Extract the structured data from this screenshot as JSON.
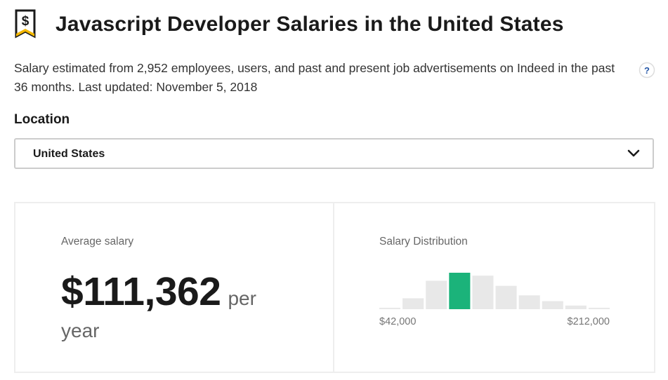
{
  "header": {
    "title": "Javascript Developer Salaries in the United States",
    "icon": "salary-tag-icon"
  },
  "description": "Salary estimated from 2,952 employees, users, and past and present job advertisements on Indeed in the past 36 months. Last updated: November 5, 2018",
  "help": {
    "icon": "help-icon",
    "glyph": "?"
  },
  "location": {
    "label": "Location",
    "selected": "United States"
  },
  "average": {
    "label": "Average salary",
    "amount": "$111,362",
    "per": "per",
    "period": "year"
  },
  "distribution": {
    "label": "Salary Distribution",
    "min_label": "$42,000",
    "max_label": "$212,000",
    "bars": [
      0.04,
      0.3,
      0.78,
      1.0,
      0.92,
      0.64,
      0.38,
      0.22,
      0.1,
      0.04
    ],
    "highlight_index": 3,
    "colors": {
      "bar": "#e8e8e8",
      "highlight": "#1bb37a"
    }
  }
}
